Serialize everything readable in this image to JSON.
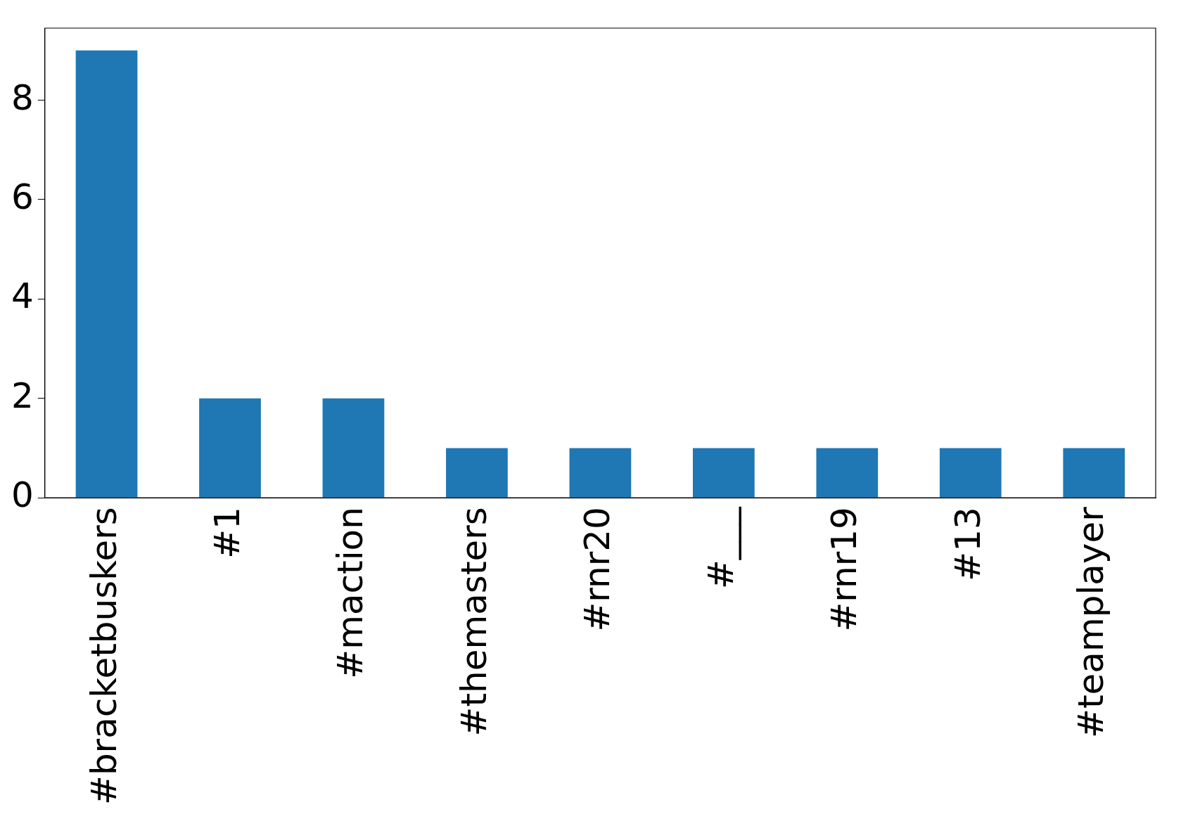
{
  "chart_data": {
    "type": "bar",
    "categories": [
      "#bracketbuskers",
      "#1",
      "#maction",
      "#themasters",
      "#rnr20",
      "#___",
      "#rnr19",
      "#13",
      "#teamplayer"
    ],
    "values": [
      9,
      2,
      2,
      1,
      1,
      1,
      1,
      1,
      1
    ],
    "color": "#1f77b4",
    "ylim": [
      0,
      9.45
    ],
    "yticks": [
      0,
      2,
      4,
      6,
      8
    ],
    "grid": false,
    "legend": false
  }
}
